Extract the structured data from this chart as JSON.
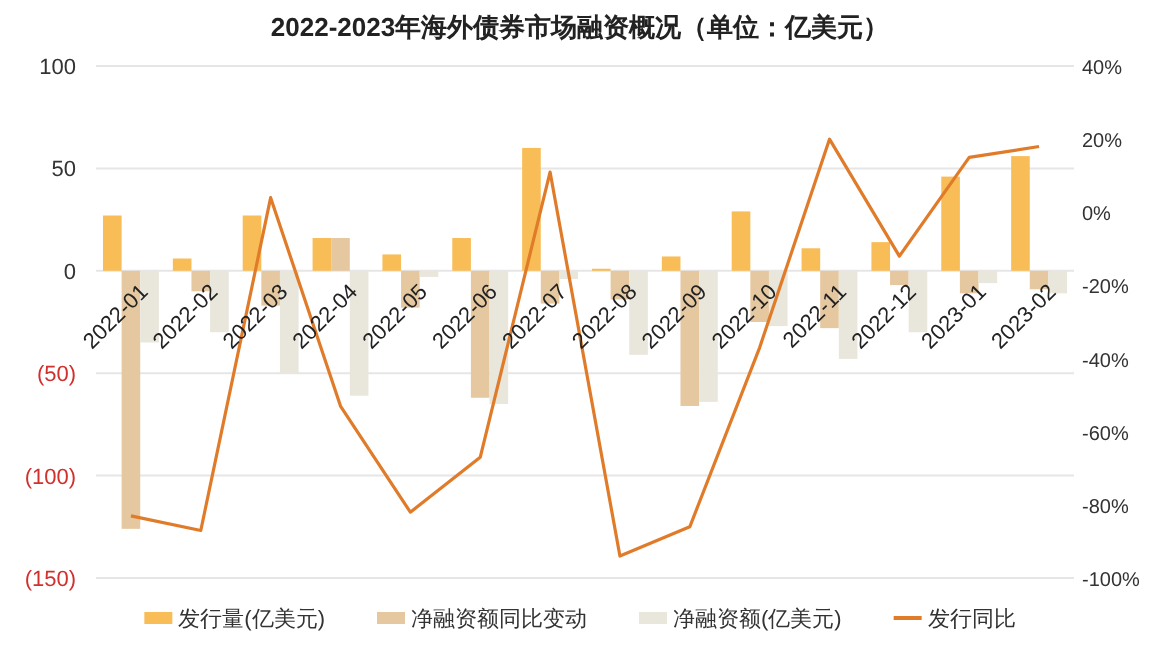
{
  "chart_data": {
    "type": "bar",
    "title": "2022-2023年海外债券市场融资概况（单位：亿美元）",
    "categories": [
      "2022-01",
      "2022-02",
      "2022-03",
      "2022-04",
      "2022-05",
      "2022-06",
      "2022-07",
      "2022-08",
      "2022-09",
      "2022-10",
      "2022-11",
      "2022-12",
      "2023-01",
      "2023-02"
    ],
    "series": [
      {
        "name": "发行量(亿美元)",
        "color": "#f9bd58",
        "values": [
          27,
          6,
          27,
          16,
          8,
          16,
          60,
          1,
          7,
          29,
          11,
          14,
          46,
          56
        ]
      },
      {
        "name": "净融资额同比变动",
        "color": "#e6c8a0",
        "values": [
          -126,
          -10,
          -17,
          16,
          -18,
          -62,
          -16,
          -14,
          -66,
          -25,
          -28,
          -7,
          -11,
          -9
        ]
      },
      {
        "name": "净融资额(亿美元)",
        "color": "#e9e6dc",
        "values": [
          -35,
          -30,
          -50,
          -61,
          -3,
          -65,
          -4,
          -41,
          -64,
          -27,
          -43,
          -30,
          -6,
          -11
        ]
      },
      {
        "name": "发行同比",
        "type": "line",
        "axis": "y2",
        "color": "#e07b2a",
        "values": [
          -83,
          -87,
          4,
          -53,
          -82,
          -67,
          11,
          -94,
          -86,
          -37,
          20,
          -12,
          15,
          18
        ]
      }
    ],
    "ylim": [
      -150,
      100
    ],
    "yticks": [
      100,
      50,
      0,
      {
        "value": -50,
        "label": "(50)"
      },
      {
        "value": -100,
        "label": "(100)"
      },
      {
        "value": -150,
        "label": "(150)"
      }
    ],
    "y2lim": [
      -100,
      40
    ],
    "y2ticks": [
      {
        "value": 40,
        "label": "40%"
      },
      {
        "value": 20,
        "label": "20%"
      },
      {
        "value": 0,
        "label": "0%"
      },
      {
        "value": -20,
        "label": "-20%"
      },
      {
        "value": -40,
        "label": "-40%"
      },
      {
        "value": -60,
        "label": "-60%"
      },
      {
        "value": -80,
        "label": "-80%"
      },
      {
        "value": -100,
        "label": "-100%"
      }
    ],
    "grid": "y",
    "legend": "bottom",
    "marker": "none",
    "line_style": "solid"
  }
}
